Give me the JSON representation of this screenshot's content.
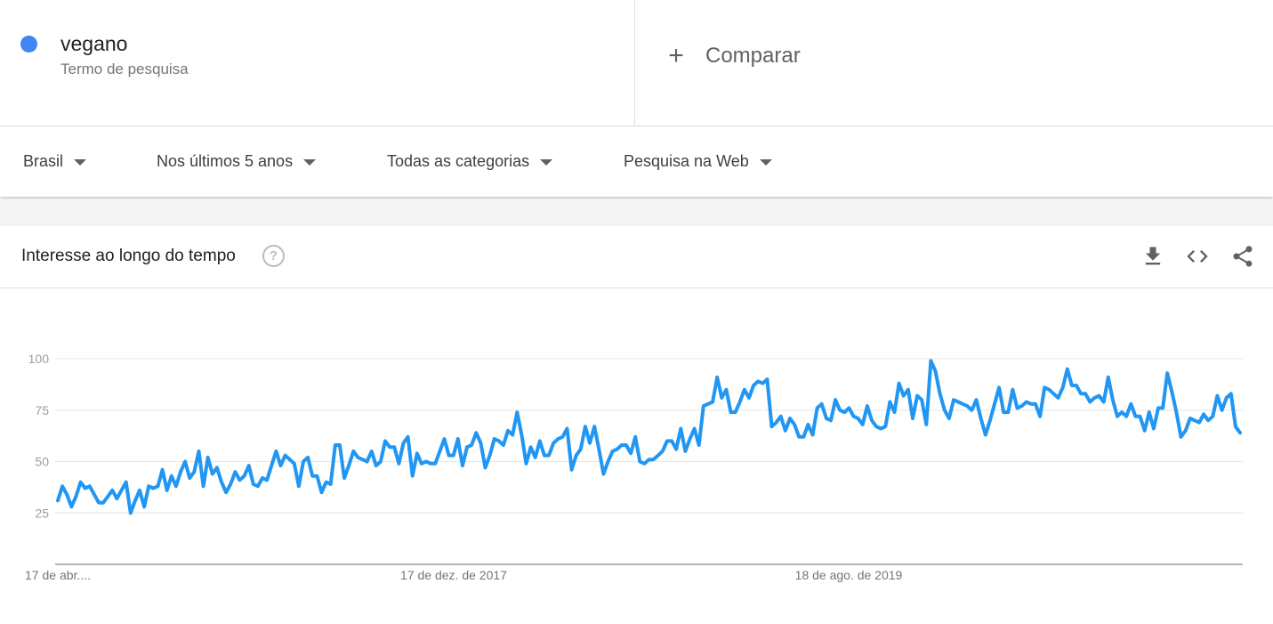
{
  "term": {
    "name": "vegano",
    "type_label": "Termo de pesquisa",
    "color": "#4285f4"
  },
  "compare": {
    "icon": "plus-icon",
    "label": "Comparar"
  },
  "filters": [
    {
      "label": "Brasil"
    },
    {
      "label": "Nos últimos 5 anos"
    },
    {
      "label": "Todas as categorias"
    },
    {
      "label": "Pesquisa na Web"
    }
  ],
  "widget": {
    "title": "Interesse ao longo do tempo",
    "icons": [
      "help-icon",
      "download-icon",
      "embed-code-icon",
      "share-icon"
    ]
  },
  "chart_data": {
    "type": "line",
    "series": [
      {
        "color": "#2196f3",
        "values": [
          31,
          38,
          34,
          28,
          33,
          40,
          37,
          38,
          34,
          30,
          30,
          33,
          36,
          32,
          36,
          40,
          25,
          31,
          36,
          28,
          38,
          37,
          38,
          46,
          36,
          43,
          38,
          45,
          50,
          42,
          45,
          55,
          38,
          52,
          44,
          47,
          40,
          35,
          39,
          45,
          41,
          43,
          48,
          39,
          38,
          42,
          41,
          48,
          55,
          48,
          53,
          51,
          49,
          38,
          50,
          52,
          43,
          43,
          35,
          40,
          39,
          58,
          58,
          42,
          48,
          55,
          52,
          51,
          50,
          55,
          48,
          50,
          60,
          57,
          57,
          49,
          59,
          62,
          43,
          54,
          49,
          50,
          49,
          49,
          55,
          61,
          53,
          53,
          61,
          48,
          57,
          58,
          64,
          59,
          47,
          53,
          61,
          60,
          58,
          65,
          63,
          74,
          63,
          49,
          57,
          52,
          60,
          53,
          53,
          59,
          61,
          62,
          66,
          46,
          53,
          56,
          67,
          59,
          67,
          56,
          44,
          50,
          55,
          56,
          58,
          58,
          54,
          62,
          50,
          49,
          51,
          51,
          53,
          55,
          60,
          60,
          56,
          66,
          55,
          61,
          66,
          58,
          77,
          78,
          79,
          91,
          81,
          85,
          74,
          74,
          79,
          85,
          81,
          87,
          89,
          88,
          90,
          67,
          69,
          72,
          65,
          71,
          68,
          62,
          62,
          68,
          63,
          76,
          78,
          71,
          70,
          80,
          75,
          74,
          76,
          72,
          71,
          68,
          77,
          70,
          67,
          66,
          67,
          79,
          74,
          88,
          82,
          85,
          71,
          82,
          80,
          68,
          99,
          94,
          83,
          75,
          71,
          80,
          79,
          78,
          77,
          75,
          80,
          71,
          63,
          70,
          78,
          86,
          74,
          74,
          85,
          76,
          77,
          79,
          78,
          78,
          72,
          86,
          85,
          83,
          81,
          86,
          95,
          87,
          87,
          83,
          83,
          79,
          81,
          82,
          79,
          91,
          80,
          72,
          74,
          72,
          78,
          72,
          72,
          65,
          74,
          66,
          76,
          76,
          93,
          84,
          74,
          62,
          65,
          71,
          70,
          69,
          73,
          70,
          72,
          82,
          75,
          81,
          83,
          67,
          64
        ]
      }
    ],
    "x_labels": [
      "17 de abr....",
      "17 de dez. de 2017",
      "18 de ago. de 2019"
    ],
    "y_ticks": [
      25,
      50,
      75,
      100
    ],
    "ylim": [
      0,
      100
    ],
    "grid": true
  }
}
